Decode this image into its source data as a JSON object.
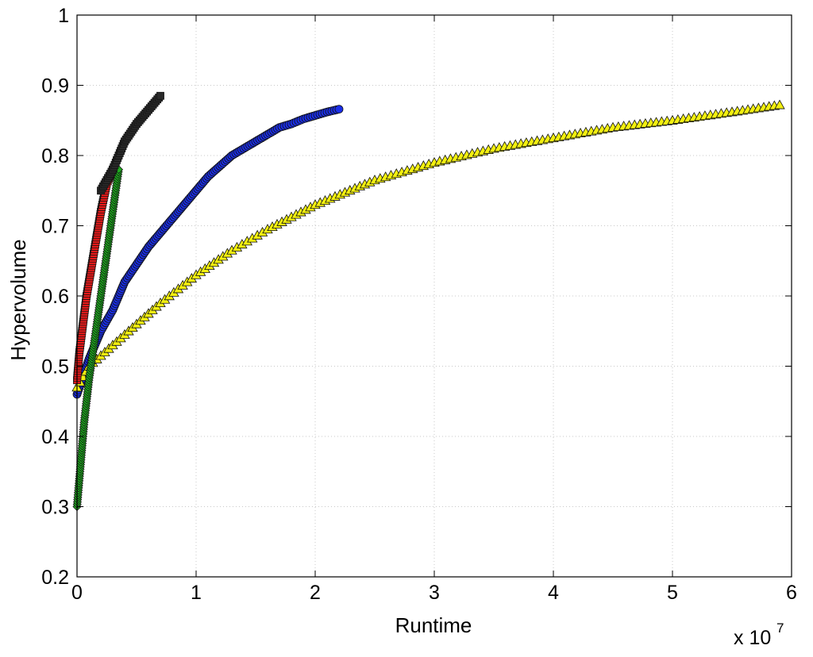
{
  "chart_data": {
    "type": "scatter",
    "title": "",
    "xlabel": "Runtime",
    "ylabel": "Hypervolume",
    "x_exponent_label": "x 10",
    "x_exponent_power": "7",
    "x_multiplier": 10000000,
    "xlim": [
      0,
      6
    ],
    "ylim": [
      0.2,
      1
    ],
    "xticks": [
      "0",
      "1",
      "2",
      "3",
      "4",
      "5",
      "6"
    ],
    "yticks": [
      "0.2",
      "0.3",
      "0.4",
      "0.5",
      "0.6",
      "0.7",
      "0.8",
      "0.9",
      "1"
    ],
    "grid": true,
    "legend": "none",
    "series": [
      {
        "marker": "circle",
        "color": "#1a2ee8",
        "points": [
          [
            0.0,
            0.46
          ],
          [
            0.1,
            0.51
          ],
          [
            0.2,
            0.55
          ],
          [
            0.3,
            0.58
          ],
          [
            0.4,
            0.62
          ],
          [
            0.5,
            0.645
          ],
          [
            0.6,
            0.67
          ],
          [
            0.7,
            0.69
          ],
          [
            0.8,
            0.71
          ],
          [
            0.9,
            0.73
          ],
          [
            1.0,
            0.75
          ],
          [
            1.1,
            0.77
          ],
          [
            1.2,
            0.785
          ],
          [
            1.3,
            0.8
          ],
          [
            1.4,
            0.81
          ],
          [
            1.5,
            0.82
          ],
          [
            1.6,
            0.83
          ],
          [
            1.7,
            0.84
          ],
          [
            1.8,
            0.845
          ],
          [
            1.9,
            0.852
          ],
          [
            2.0,
            0.857
          ],
          [
            2.1,
            0.862
          ],
          [
            2.2,
            0.866
          ]
        ]
      },
      {
        "marker": "triangle",
        "color": "#f2ef10",
        "points": [
          [
            0.0,
            0.47
          ],
          [
            0.1,
            0.5
          ],
          [
            0.3,
            0.53
          ],
          [
            0.5,
            0.56
          ],
          [
            0.7,
            0.59
          ],
          [
            1.0,
            0.63
          ],
          [
            1.3,
            0.665
          ],
          [
            1.6,
            0.695
          ],
          [
            2.0,
            0.73
          ],
          [
            2.5,
            0.765
          ],
          [
            3.0,
            0.79
          ],
          [
            3.5,
            0.81
          ],
          [
            4.0,
            0.825
          ],
          [
            4.5,
            0.84
          ],
          [
            5.0,
            0.85
          ],
          [
            5.5,
            0.862
          ],
          [
            5.9,
            0.872
          ]
        ]
      },
      {
        "marker": "diamond",
        "color": "#1fae1f",
        "points": [
          [
            0.0,
            0.3
          ],
          [
            0.03,
            0.36
          ],
          [
            0.06,
            0.42
          ],
          [
            0.1,
            0.48
          ],
          [
            0.15,
            0.54
          ],
          [
            0.2,
            0.6
          ],
          [
            0.25,
            0.66
          ],
          [
            0.3,
            0.72
          ],
          [
            0.35,
            0.78
          ]
        ]
      },
      {
        "marker": "square",
        "color": "#ee1a1a",
        "points": [
          [
            0.0,
            0.48
          ],
          [
            0.02,
            0.52
          ],
          [
            0.05,
            0.56
          ],
          [
            0.08,
            0.6
          ],
          [
            0.12,
            0.64
          ],
          [
            0.16,
            0.68
          ],
          [
            0.2,
            0.72
          ],
          [
            0.25,
            0.76
          ],
          [
            0.3,
            0.78
          ]
        ]
      },
      {
        "marker": "square",
        "color": "#2a2a2a",
        "points": [
          [
            0.2,
            0.75
          ],
          [
            0.3,
            0.78
          ],
          [
            0.35,
            0.8
          ],
          [
            0.4,
            0.82
          ],
          [
            0.5,
            0.845
          ],
          [
            0.6,
            0.865
          ],
          [
            0.7,
            0.885
          ]
        ]
      }
    ]
  }
}
